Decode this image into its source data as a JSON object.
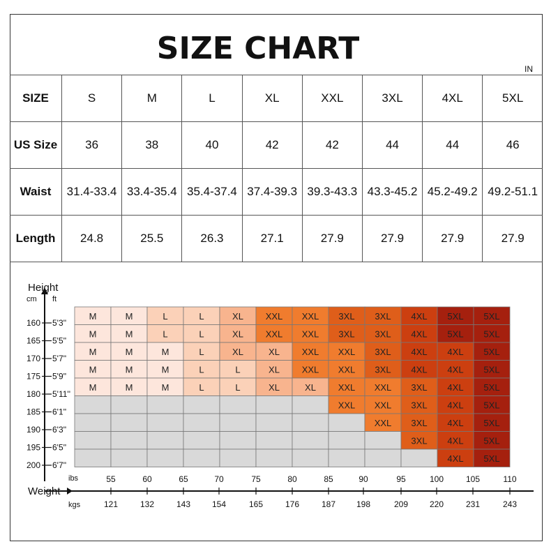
{
  "title": "SIZE CHART",
  "unit": "IN",
  "size_table": {
    "rows": [
      {
        "label": "SIZE",
        "values": [
          "S",
          "M",
          "L",
          "XL",
          "XXL",
          "3XL",
          "4XL",
          "5XL"
        ]
      },
      {
        "label": "US Size",
        "values": [
          "36",
          "38",
          "40",
          "42",
          "42",
          "44",
          "44",
          "46"
        ]
      },
      {
        "label": "Waist",
        "values": [
          "31.4-33.4",
          "33.4-35.4",
          "35.4-37.4",
          "37.4-39.3",
          "39.3-43.3",
          "43.3-45.2",
          "45.2-49.2",
          "49.2-51.1"
        ]
      },
      {
        "label": "Length",
        "values": [
          "24.8",
          "25.5",
          "26.3",
          "27.1",
          "27.9",
          "27.9",
          "27.9",
          "27.9"
        ]
      }
    ]
  },
  "chart_data": {
    "type": "table",
    "height_axis": {
      "label": "Height",
      "unit_left": "cm",
      "unit_right": "ft",
      "cm": [
        "160",
        "165",
        "170",
        "175",
        "180",
        "185",
        "190",
        "195",
        "200"
      ],
      "ft": [
        "5'3''",
        "5'5''",
        "5'7''",
        "5'9''",
        "5'11''",
        "6'1''",
        "6'3''",
        "6'5''",
        "6'7''"
      ]
    },
    "weight_axis": {
      "label": "Weight",
      "unit_top": "ibs",
      "unit_bottom": "kgs",
      "lbs": [
        "55",
        "60",
        "65",
        "70",
        "75",
        "80",
        "85",
        "90",
        "95",
        "100",
        "105",
        "110"
      ],
      "kgs": [
        "121",
        "132",
        "143",
        "154",
        "165",
        "176",
        "187",
        "198",
        "209",
        "220",
        "231",
        "243"
      ]
    },
    "grid": [
      [
        "M",
        "M",
        "L",
        "L",
        "XL",
        "XXL",
        "XXL",
        "3XL",
        "3XL",
        "4XL",
        "5XL",
        "5XL"
      ],
      [
        "M",
        "M",
        "L",
        "L",
        "XL",
        "XXL",
        "XXL",
        "3XL",
        "3XL",
        "4XL",
        "5XL",
        "5XL"
      ],
      [
        "M",
        "M",
        "M",
        "L",
        "XL",
        "XL",
        "XXL",
        "XXL",
        "3XL",
        "4XL",
        "4XL",
        "5XL"
      ],
      [
        "M",
        "M",
        "M",
        "L",
        "L",
        "XL",
        "XXL",
        "XXL",
        "3XL",
        "4XL",
        "4XL",
        "5XL"
      ],
      [
        "M",
        "M",
        "M",
        "L",
        "L",
        "XL",
        "XL",
        "XXL",
        "XXL",
        "3XL",
        "4XL",
        "5XL"
      ],
      [
        "",
        "",
        "",
        "",
        "",
        "",
        "",
        "XXL",
        "XXL",
        "3XL",
        "4XL",
        "5XL"
      ],
      [
        "",
        "",
        "",
        "",
        "",
        "",
        "",
        "",
        "XXL",
        "3XL",
        "4XL",
        "5XL"
      ],
      [
        "",
        "",
        "",
        "",
        "",
        "",
        "",
        "",
        "",
        "3XL",
        "4XL",
        "5XL"
      ],
      [
        "",
        "",
        "",
        "",
        "",
        "",
        "",
        "",
        "",
        "",
        "4XL",
        "5XL"
      ]
    ],
    "colors": {
      "M": "#fde6dc",
      "L": "#fbd1b8",
      "XL": "#f8b48e",
      "XXL": "#f07c2e",
      "3XL": "#df5e1a",
      "4XL": "#cc3f10",
      "5XL": "#a5200e",
      "empty": "#d9d9d9"
    }
  }
}
